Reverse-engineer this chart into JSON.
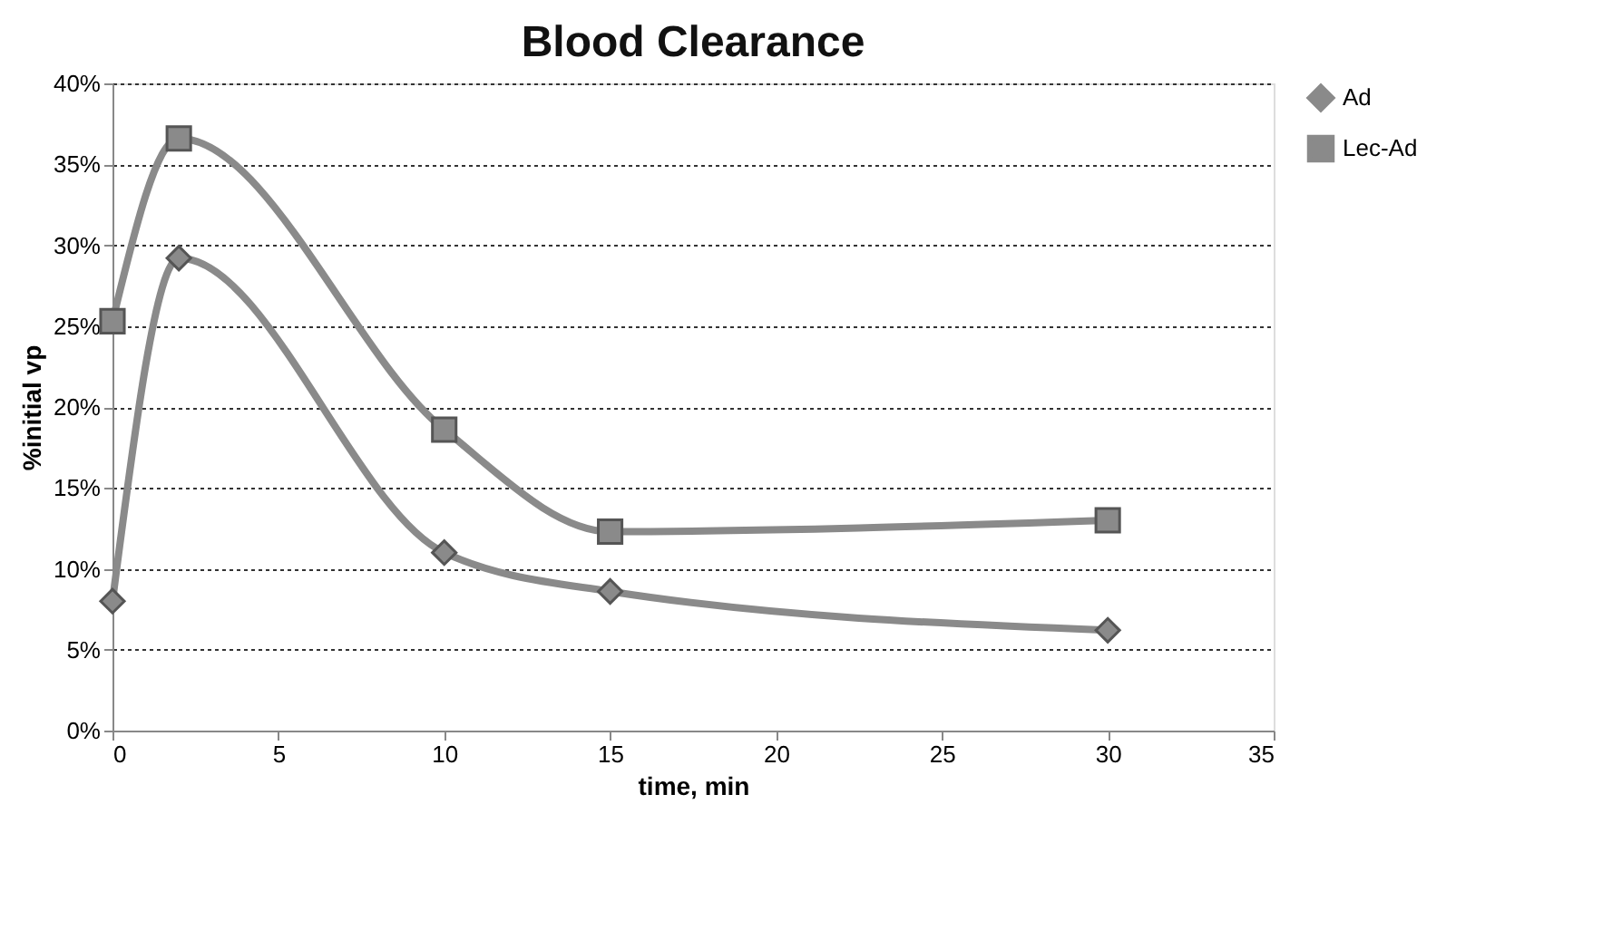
{
  "chart_data": {
    "type": "line",
    "title": "Blood Clearance",
    "xlabel": "time, min",
    "ylabel": "%initial vp",
    "x": [
      0,
      2,
      10,
      15,
      30
    ],
    "series": [
      {
        "name": "Ad",
        "color": "#8a8a8a",
        "marker": "diamond",
        "values": [
          8.0,
          29.2,
          11.0,
          8.6,
          6.2
        ]
      },
      {
        "name": "Lec-Ad",
        "color": "#8a8a8a",
        "marker": "square",
        "values": [
          25.3,
          36.6,
          18.6,
          12.3,
          13.0
        ]
      }
    ],
    "xlim": [
      0,
      35
    ],
    "xticks": [
      0,
      5,
      10,
      15,
      20,
      25,
      30,
      35
    ],
    "ylim": [
      0,
      40
    ],
    "yticks": [
      {
        "value": 0,
        "label": "0%"
      },
      {
        "value": 5,
        "label": "5%"
      },
      {
        "value": 10,
        "label": "10%"
      },
      {
        "value": 15,
        "label": "15%"
      },
      {
        "value": 20,
        "label": "20%"
      },
      {
        "value": 25,
        "label": "25%"
      },
      {
        "value": 30,
        "label": "30%"
      },
      {
        "value": 35,
        "label": "35%"
      },
      {
        "value": 40,
        "label": "40%"
      }
    ],
    "grid": "y",
    "legend": "right",
    "line_style": "solid"
  }
}
